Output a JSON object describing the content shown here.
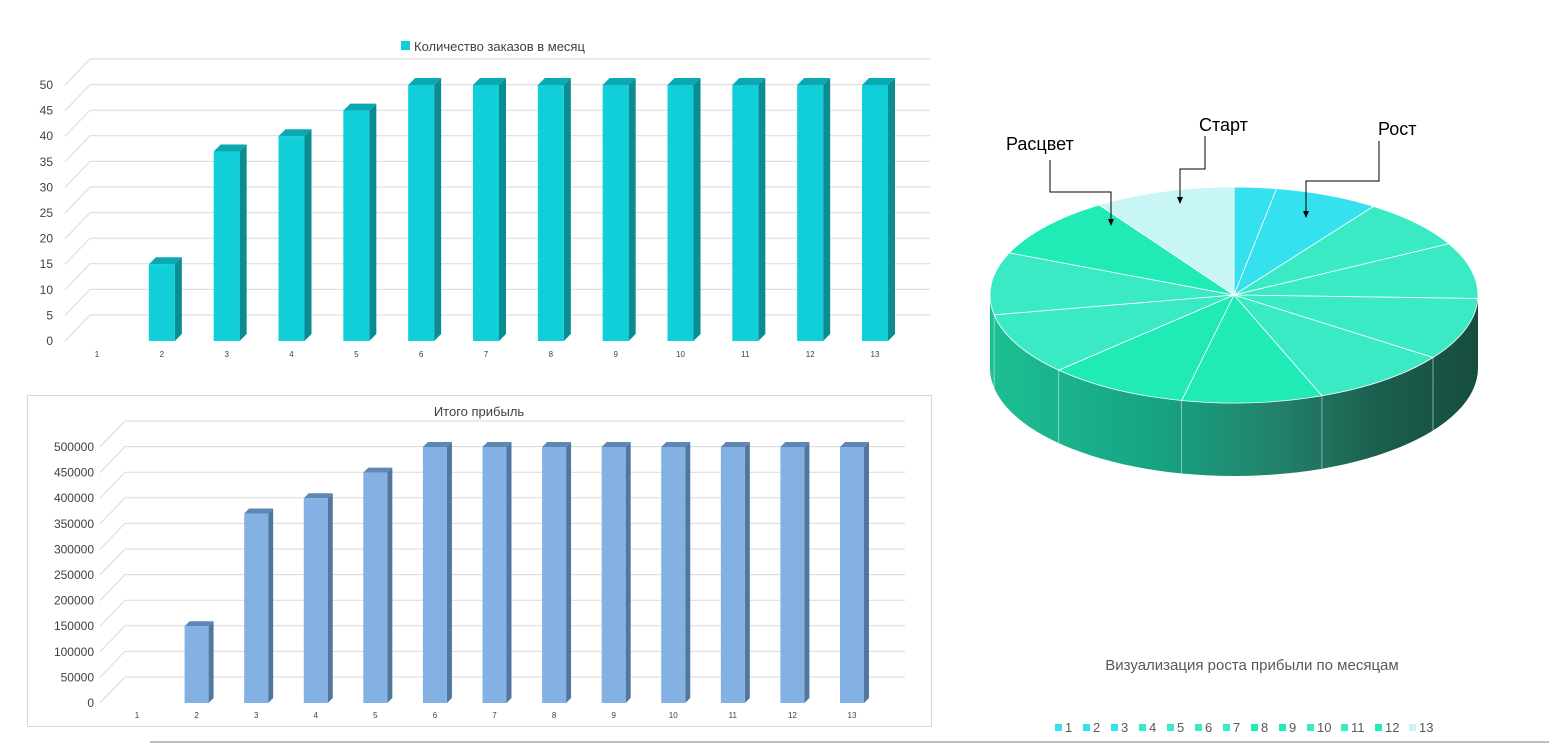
{
  "charts": {
    "orders": {
      "legend_label": "Количество заказов в месяц",
      "color": "#10cfd8",
      "side_color": "#0a8c93",
      "top_color": "#0aa9b1"
    },
    "profit": {
      "title": "Итого прибыль",
      "color": "#83b1e3",
      "side_color": "#4f77a0",
      "top_color": "#5f87b3"
    },
    "pie": {
      "title": "Визуализация роста прибыли по месяцам",
      "annotations": [
        "Расцвет",
        "Старт",
        "Рост"
      ]
    }
  },
  "chart_data": [
    {
      "type": "bar",
      "legend": [
        "Количество заказов в месяц"
      ],
      "categories": [
        "1",
        "2",
        "3",
        "4",
        "5",
        "6",
        "7",
        "8",
        "9",
        "10",
        "11",
        "12",
        "13"
      ],
      "values": [
        0,
        15,
        37,
        40,
        45,
        50,
        50,
        50,
        50,
        50,
        50,
        50,
        50
      ],
      "ylim": [
        0,
        50
      ],
      "yticks": [
        0,
        5,
        10,
        15,
        20,
        25,
        30,
        35,
        40,
        45,
        50
      ],
      "grid": true
    },
    {
      "type": "bar",
      "title": "Итого прибыль",
      "categories": [
        "1",
        "2",
        "3",
        "4",
        "5",
        "6",
        "7",
        "8",
        "9",
        "10",
        "11",
        "12",
        "13"
      ],
      "values": [
        0,
        150000,
        370000,
        400000,
        450000,
        500000,
        500000,
        500000,
        500000,
        500000,
        500000,
        500000,
        500000
      ],
      "ylim": [
        0,
        500000
      ],
      "yticks": [
        0,
        50000,
        100000,
        150000,
        200000,
        250000,
        300000,
        350000,
        400000,
        450000,
        500000
      ],
      "grid": true
    },
    {
      "type": "pie",
      "title": "Визуализация роста прибыли по месяцам",
      "categories": [
        "1",
        "2",
        "3",
        "4",
        "5",
        "6",
        "7",
        "8",
        "9",
        "10",
        "11",
        "12",
        "13"
      ],
      "values": [
        0,
        150000,
        370000,
        400000,
        450000,
        500000,
        500000,
        500000,
        500000,
        500000,
        500000,
        500000,
        500000
      ],
      "colors": [
        "#35e1ee",
        "#35e1ee",
        "#35e1ee",
        "#3aeac5",
        "#3aeac5",
        "#3aeac5",
        "#3aeac5",
        "#20eab6",
        "#20eab6",
        "#3aeac5",
        "#3aeac5",
        "#20eab6",
        "#c8f5f6"
      ],
      "annotations": [
        "Расцвет",
        "Старт",
        "Рост"
      ],
      "legend_placement": "bottom"
    }
  ]
}
